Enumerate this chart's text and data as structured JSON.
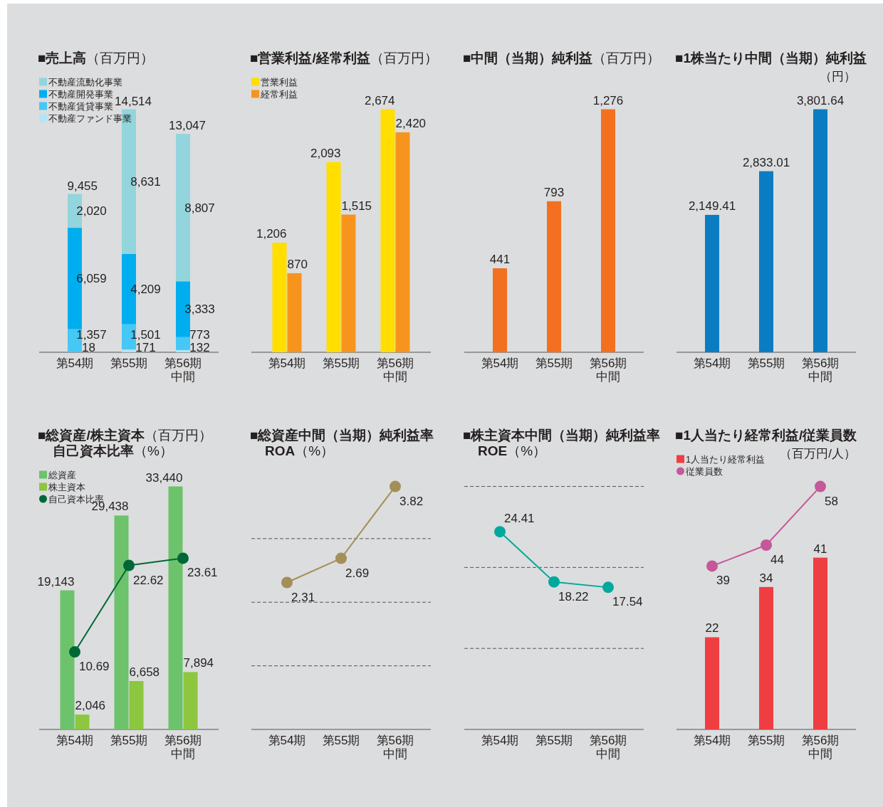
{
  "chart_data": [
    {
      "type": "bar",
      "title": "**■売上高**（百万円）",
      "categories": [
        "第54期",
        "第55期",
        "第56期中間"
      ],
      "stacked": true,
      "legend": "top left",
      "totals": [
        "9,455",
        "14,514",
        "13,047"
      ],
      "series": [
        {
          "name": "不動産ファンド事業",
          "color": "#b3e3f8",
          "values": [
            18,
            171,
            132
          ],
          "value_labels": [
            "18",
            "171",
            "132"
          ]
        },
        {
          "name": "不動産賃貸事業",
          "color": "#45c8f5",
          "values": [
            1357,
            1501,
            773
          ],
          "value_labels": [
            "1,357",
            "1,501",
            "773"
          ]
        },
        {
          "name": "不動産開発事業",
          "color": "#00aeef",
          "values": [
            6059,
            4209,
            3333
          ],
          "value_labels": [
            "6,059",
            "4,209",
            "3,333"
          ]
        },
        {
          "name": "不動産流動化事業",
          "color": "#93d5dc",
          "values": [
            2020,
            8631,
            8807
          ],
          "value_labels": [
            "2,020",
            "8,631",
            "8,807"
          ]
        }
      ]
    },
    {
      "type": "bar",
      "title": "**■営業利益/経常利益**（百万円）",
      "categories": [
        "第54期",
        "第55期",
        "第56期中間"
      ],
      "legend": "top left",
      "series": [
        {
          "name": "営業利益",
          "color": "#ffde00",
          "values": [
            1206,
            2093,
            2674
          ],
          "value_labels": [
            "1,206",
            "2,093",
            "2,674"
          ]
        },
        {
          "name": "経常利益",
          "color": "#f7941d",
          "values": [
            870,
            1515,
            2420
          ],
          "value_labels": [
            "870",
            "1,515",
            "2,420"
          ]
        }
      ]
    },
    {
      "type": "bar",
      "title": "**■中間（当期）純利益**（百万円）",
      "categories": [
        "第54期",
        "第55期",
        "第56期中間"
      ],
      "color": "#f37021",
      "values": [
        441,
        793,
        1276
      ],
      "value_labels": [
        "441",
        "793",
        "1,276"
      ]
    },
    {
      "type": "bar",
      "title": "**■1株当たり中間（当期）純利益**",
      "subtitle": "（円）",
      "categories": [
        "第54期",
        "第55期",
        "第56期中間"
      ],
      "color": "#0a7dc2",
      "values": [
        2149.41,
        2833.01,
        3801.64
      ],
      "value_labels": [
        "2,149.41",
        "2,833.01",
        "3,801.64"
      ]
    },
    {
      "type": "bar",
      "title": "**■総資産/株主資本**（百万円）**自己資本比率**（%）",
      "categories": [
        "第54期",
        "第55期",
        "第56期中間"
      ],
      "legend": "top left",
      "marker": "circle",
      "series": [
        {
          "name": "総資産",
          "color": "#6cc36b",
          "values": [
            19143,
            29438,
            33440
          ],
          "value_labels": [
            "19,143",
            "29,438",
            "33,440"
          ]
        },
        {
          "name": "株主資本",
          "color": "#8dc63f",
          "values": [
            2046,
            6658,
            7894
          ],
          "value_labels": [
            "2,046",
            "6,658",
            "7,894"
          ]
        },
        {
          "name": "自己資本比率",
          "color": "#006837",
          "type": "line",
          "axis": "y2",
          "values": [
            10.69,
            22.62,
            23.61
          ],
          "value_labels": [
            "10.69",
            "22.62",
            "23.61"
          ]
        }
      ]
    },
    {
      "type": "line",
      "title": "**■総資産中間（当期）純利益率**\n**ROA**（%）",
      "categories": [
        "第54期",
        "第55期",
        "第56期中間"
      ],
      "data_labels": true,
      "marker": "circle",
      "color": "#a38f57",
      "values": [
        2.31,
        2.69,
        3.82
      ],
      "ref_lines": [
        {
          "axis": "y",
          "value": 1,
          "line_style": "dashed"
        },
        {
          "axis": "y",
          "value": 2,
          "line_style": "dashed"
        },
        {
          "axis": "y",
          "value": 3,
          "line_style": "dashed"
        }
      ]
    },
    {
      "type": "line",
      "title": "**■株主資本中間（当期）純利益率**\n**ROE**（%）",
      "categories": [
        "第54期",
        "第55期",
        "第56期中間"
      ],
      "data_labels": true,
      "marker": "circle",
      "color": "#00a99d",
      "values": [
        24.41,
        18.22,
        17.54
      ],
      "ref_lines": [
        {
          "axis": "y",
          "value": 10,
          "line_style": "dashed"
        },
        {
          "axis": "y",
          "value": 20,
          "line_style": "dashed"
        },
        {
          "axis": "y",
          "value": 30,
          "line_style": "dashed"
        }
      ]
    },
    {
      "type": "bar",
      "title": "**■1人当たり経常利益/従業員数**",
      "subtitle": "（百万円/人）",
      "categories": [
        "第54期",
        "第55期",
        "第56期中間"
      ],
      "data_labels": true,
      "legend": "top left",
      "marker": "circle",
      "series": [
        {
          "name": "1人当たり経常利益",
          "color": "#ef3e42",
          "values": [
            22,
            34,
            41
          ]
        },
        {
          "name": "従業員数",
          "color": "#c6579a",
          "type": "line",
          "values": [
            39,
            44,
            58
          ]
        }
      ]
    }
  ]
}
